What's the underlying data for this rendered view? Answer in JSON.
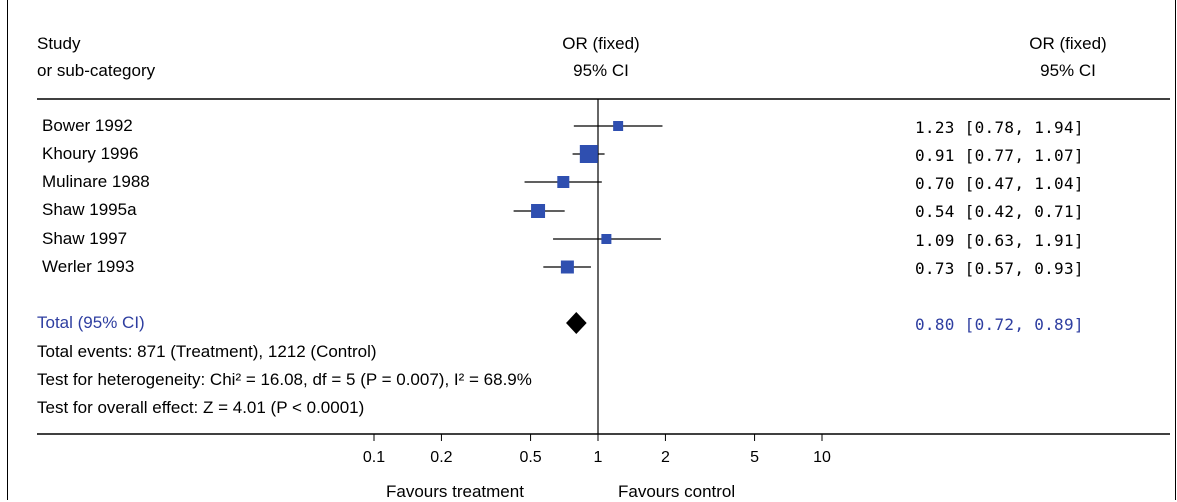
{
  "header": {
    "study_line1": "Study",
    "study_line2": "or sub-category",
    "plot_line1": "OR (fixed)",
    "plot_line2": "95% CI",
    "result_line1": "OR (fixed)",
    "result_line2": "95% CI"
  },
  "chart_data": {
    "type": "forest",
    "scale": "log",
    "xlim": [
      0.1,
      10
    ],
    "ticks": [
      0.1,
      0.2,
      0.5,
      1,
      2,
      5,
      10
    ],
    "tick_labels": [
      "0.1",
      "0.2",
      "0.5",
      "1",
      "2",
      "5",
      "10"
    ],
    "null_value": 1,
    "studies": [
      {
        "name": "Bower 1992",
        "or": 1.23,
        "lo": 0.78,
        "hi": 1.94,
        "result": "1.23 [0.78, 1.94]",
        "weight_box": 1.0
      },
      {
        "name": "Khoury 1996",
        "or": 0.91,
        "lo": 0.77,
        "hi": 1.07,
        "result": "0.91 [0.77, 1.07]",
        "weight_box": 1.8
      },
      {
        "name": "Mulinare 1988",
        "or": 0.7,
        "lo": 0.47,
        "hi": 1.04,
        "result": "0.70 [0.47, 1.04]",
        "weight_box": 1.2
      },
      {
        "name": "Shaw 1995a",
        "or": 0.54,
        "lo": 0.42,
        "hi": 0.71,
        "result": "0.54 [0.42, 0.71]",
        "weight_box": 1.4
      },
      {
        "name": "Shaw 1997",
        "or": 1.09,
        "lo": 0.63,
        "hi": 1.91,
        "result": "1.09 [0.63, 1.91]",
        "weight_box": 1.0
      },
      {
        "name": "Werler 1993",
        "or": 0.73,
        "lo": 0.57,
        "hi": 0.93,
        "result": "0.73 [0.57, 0.93]",
        "weight_box": 1.3
      }
    ],
    "total": {
      "name": "Total (95% CI)",
      "or": 0.8,
      "lo": 0.72,
      "hi": 0.89,
      "result": "0.80 [0.72, 0.89]"
    },
    "xlabel_left": "Favours treatment",
    "xlabel_right": "Favours control"
  },
  "footer": {
    "events": "Total events: 871 (Treatment), 1212 (Control)",
    "heterogeneity": "Test for heterogeneity: Chi² = 16.08, df = 5 (P = 0.007), I² = 68.9%",
    "overall": "Test for overall effect: Z = 4.01 (P < 0.0001)"
  },
  "colors": {
    "box": "#2f4fb0",
    "total_text": "#2e3ea0",
    "line": "#000000"
  }
}
